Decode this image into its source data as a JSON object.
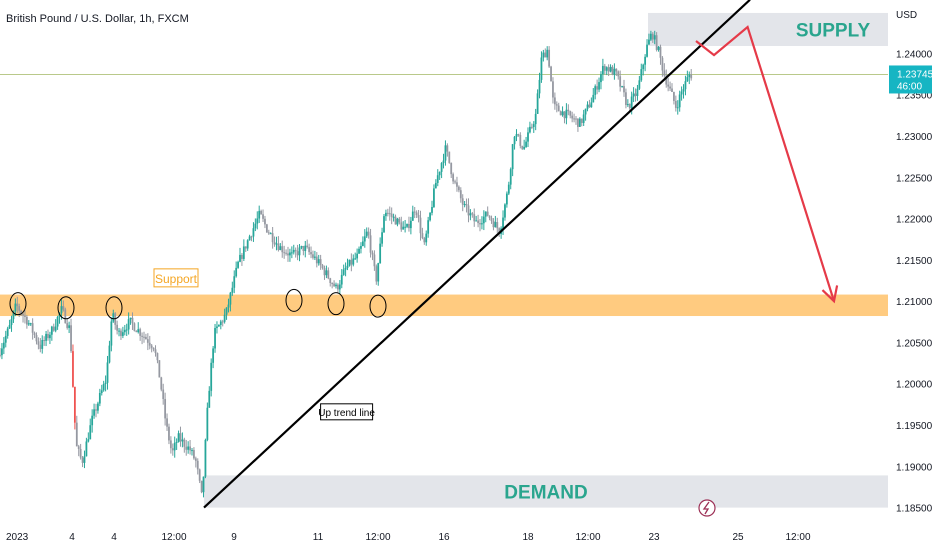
{
  "header": {
    "title": "British Pound / U.S. Dollar, 1h, FXCM"
  },
  "chart_data": {
    "type": "candlestick",
    "title": "British Pound / U.S. Dollar, 1h, FXCM",
    "currency_label": "USD",
    "y_ticks": [
      "1.24000",
      "1.23500",
      "1.23000",
      "1.22500",
      "1.22000",
      "1.21500",
      "1.21000",
      "1.20500",
      "1.20000",
      "1.19500",
      "1.19000",
      "1.18500"
    ],
    "y_tick_values": [
      1.24,
      1.235,
      1.23,
      1.225,
      1.22,
      1.215,
      1.21,
      1.205,
      1.2,
      1.195,
      1.19,
      1.185
    ],
    "ylim": [
      1.1835,
      1.2455
    ],
    "x_ticks": [
      "2023",
      "4",
      "4",
      "12:00",
      "9",
      "11",
      "12:00",
      "16",
      "18",
      "12:00",
      "23",
      "25",
      "12:00"
    ],
    "x_tick_positions": [
      0.0,
      5.0,
      8.5,
      13.5,
      18.5,
      25.5,
      30.5,
      36.0,
      43.0,
      48.0,
      53.5,
      60.5,
      65.5
    ],
    "xlim": [
      -1.0,
      73.0
    ],
    "current_price": {
      "price": "1.23745",
      "countdown": "46:00",
      "value": 1.23745
    },
    "support_zone": {
      "label": "Support",
      "y_top": 1.2108,
      "y_bottom": 1.2082
    },
    "supply_zone": {
      "label": "SUPPLY",
      "y_top": 1.2449,
      "y_bottom": 1.2409,
      "x_start": 53.0
    },
    "demand_zone": {
      "label": "DEMAND",
      "y_top": 1.1889,
      "y_bottom": 1.185,
      "x_start": 16.0
    },
    "trend_line": {
      "label": "Up trend line",
      "from": [
        16.0,
        1.185
      ],
      "to": [
        61.5,
        1.2465
      ]
    },
    "projection_path": [
      [
        57.0,
        1.2415
      ],
      [
        58.5,
        1.2398
      ],
      [
        61.3,
        1.2432
      ],
      [
        68.5,
        1.21
      ]
    ],
    "touch_points": [
      [
        0.5,
        1.2097
      ],
      [
        4.5,
        1.2092
      ],
      [
        8.5,
        1.2092
      ],
      [
        23.5,
        1.2101
      ],
      [
        27.0,
        1.2097
      ],
      [
        30.5,
        1.2094
      ]
    ],
    "annotations": [
      {
        "text": "Up trend line",
        "x": 25.8,
        "y": 1.1966
      },
      {
        "text": "Support",
        "x": 12.0,
        "y": 1.2127
      }
    ],
    "price_path": [
      [
        -1.0,
        1.2035
      ],
      [
        0.0,
        1.207
      ],
      [
        0.5,
        1.2095
      ],
      [
        1.5,
        1.2075
      ],
      [
        2.5,
        1.2045
      ],
      [
        3.5,
        1.2065
      ],
      [
        4.3,
        1.209
      ],
      [
        5.0,
        1.2065
      ],
      [
        5.5,
        1.1925
      ],
      [
        6.0,
        1.1905
      ],
      [
        6.8,
        1.1955
      ],
      [
        7.5,
        1.1985
      ],
      [
        8.0,
        1.2005
      ],
      [
        8.5,
        1.2085
      ],
      [
        9.0,
        1.206
      ],
      [
        10.0,
        1.2075
      ],
      [
        11.0,
        1.206
      ],
      [
        12.0,
        1.2045
      ],
      [
        12.5,
        1.2005
      ],
      [
        13.0,
        1.195
      ],
      [
        13.5,
        1.1915
      ],
      [
        14.0,
        1.1935
      ],
      [
        15.0,
        1.192
      ],
      [
        15.5,
        1.1905
      ],
      [
        16.0,
        1.186
      ],
      [
        16.5,
        1.198
      ],
      [
        17.0,
        1.206
      ],
      [
        18.0,
        1.2085
      ],
      [
        19.0,
        1.2145
      ],
      [
        20.0,
        1.218
      ],
      [
        20.8,
        1.2205
      ],
      [
        21.5,
        1.2185
      ],
      [
        22.5,
        1.2165
      ],
      [
        23.5,
        1.2155
      ],
      [
        24.5,
        1.2165
      ],
      [
        25.5,
        1.215
      ],
      [
        26.5,
        1.213
      ],
      [
        27.2,
        1.2115
      ],
      [
        28.0,
        1.214
      ],
      [
        29.0,
        1.2155
      ],
      [
        29.8,
        1.2185
      ],
      [
        30.5,
        1.2125
      ],
      [
        31.2,
        1.221
      ],
      [
        32.0,
        1.22
      ],
      [
        33.0,
        1.2185
      ],
      [
        33.8,
        1.2215
      ],
      [
        34.5,
        1.2165
      ],
      [
        35.5,
        1.2245
      ],
      [
        36.3,
        1.2285
      ],
      [
        37.0,
        1.2245
      ],
      [
        37.8,
        1.2215
      ],
      [
        38.8,
        1.2195
      ],
      [
        39.8,
        1.2205
      ],
      [
        40.8,
        1.2185
      ],
      [
        41.5,
        1.2235
      ],
      [
        42.0,
        1.2305
      ],
      [
        42.8,
        1.2285
      ],
      [
        43.8,
        1.2325
      ],
      [
        44.3,
        1.2395
      ],
      [
        44.8,
        1.2405
      ],
      [
        45.3,
        1.2335
      ],
      [
        46.5,
        1.2325
      ],
      [
        47.5,
        1.2315
      ],
      [
        48.5,
        1.2345
      ],
      [
        49.5,
        1.2385
      ],
      [
        50.5,
        1.2375
      ],
      [
        51.5,
        1.2335
      ],
      [
        52.3,
        1.2355
      ],
      [
        53.0,
        1.2405
      ],
      [
        53.5,
        1.2425
      ],
      [
        54.0,
        1.2405
      ],
      [
        54.5,
        1.2375
      ],
      [
        55.0,
        1.2355
      ],
      [
        55.5,
        1.2335
      ],
      [
        56.0,
        1.2355
      ],
      [
        56.6,
        1.2374
      ]
    ]
  }
}
